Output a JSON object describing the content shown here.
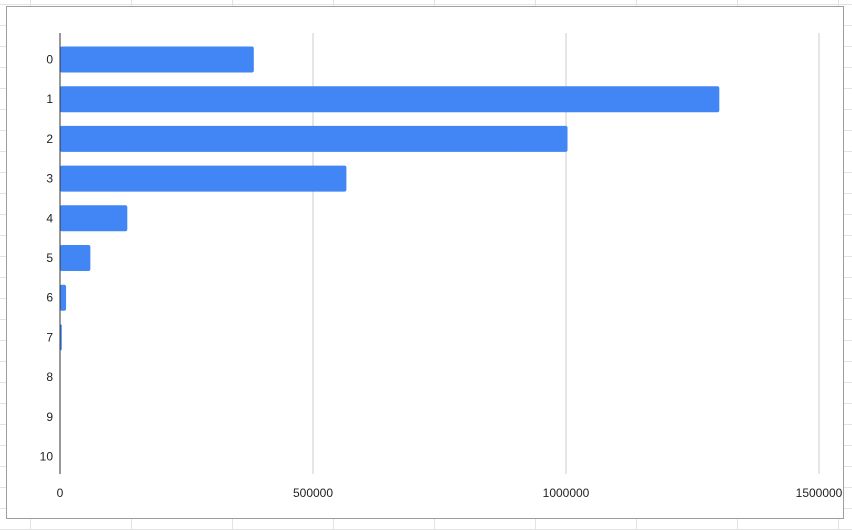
{
  "chart_data": {
    "type": "bar",
    "orientation": "horizontal",
    "categories": [
      "0",
      "1",
      "2",
      "3",
      "4",
      "5",
      "6",
      "7",
      "8",
      "9",
      "10"
    ],
    "values": [
      383000,
      1303000,
      1003000,
      566000,
      133000,
      60000,
      12000,
      3500,
      1000,
      150,
      20
    ],
    "xlim": [
      0,
      1500000
    ],
    "xticks": [
      "0",
      "500000",
      "1000000",
      "1500000"
    ],
    "grid": "vertical",
    "legend": "none",
    "bar_color": "#4285f4",
    "title": "",
    "xlabel": "",
    "ylabel": ""
  }
}
